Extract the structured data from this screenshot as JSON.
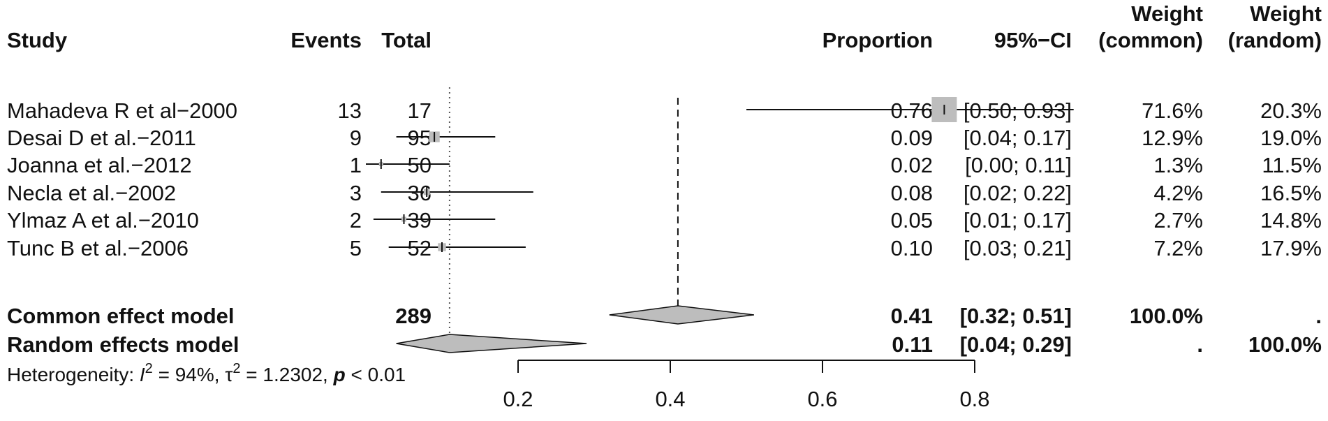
{
  "headers": {
    "study": "Study",
    "events": "Events",
    "total": "Total",
    "proportion": "Proportion",
    "ci": "95%−CI",
    "weight_common_line1": "Weight",
    "weight_common_line2": "(common)",
    "weight_random_line1": "Weight",
    "weight_random_line2": "(random)"
  },
  "heterogeneity": {
    "prefix": "Heterogeneity: ",
    "i2_symbol": "I",
    "i2_sup": "2",
    "i2_value": " = 94%, ",
    "tau_symbol": "τ",
    "tau_sup": "2",
    "tau_value": " = 1.2302, ",
    "p_symbol": "p",
    "p_value": " < 0.01"
  },
  "chart_data": {
    "type": "forest",
    "xlim": [
      0.2,
      0.8
    ],
    "xticks": [
      "0.2",
      "0.4",
      "0.6",
      "0.8"
    ],
    "studies": [
      {
        "name": "Mahadeva R et al−2000",
        "events": "13",
        "total": "17",
        "proportion": 0.76,
        "ci_lower": 0.5,
        "ci_upper": 0.93,
        "proportion_label": "0.76",
        "ci_label": "[0.50; 0.93]",
        "weight_common": "71.6%",
        "weight_random": "20.3%",
        "weight_common_value": 71.6
      },
      {
        "name": "Desai D et al.−2011",
        "events": "9",
        "total": "95",
        "proportion": 0.09,
        "ci_lower": 0.04,
        "ci_upper": 0.17,
        "proportion_label": "0.09",
        "ci_label": "[0.04; 0.17]",
        "weight_common": "12.9%",
        "weight_random": "19.0%",
        "weight_common_value": 12.9
      },
      {
        "name": "Joanna et  al.−2012",
        "events": "1",
        "total": "50",
        "proportion": 0.02,
        "ci_lower": 0.0,
        "ci_upper": 0.11,
        "proportion_label": "0.02",
        "ci_label": "[0.00; 0.11]",
        "weight_common": "1.3%",
        "weight_random": "11.5%",
        "weight_common_value": 1.3
      },
      {
        "name": "Necla et al.−2002",
        "events": "3",
        "total": "36",
        "proportion": 0.08,
        "ci_lower": 0.02,
        "ci_upper": 0.22,
        "proportion_label": "0.08",
        "ci_label": "[0.02; 0.22]",
        "weight_common": "4.2%",
        "weight_random": "16.5%",
        "weight_common_value": 4.2
      },
      {
        "name": "Ylmaz A et al.−2010",
        "events": "2",
        "total": "39",
        "proportion": 0.05,
        "ci_lower": 0.01,
        "ci_upper": 0.17,
        "proportion_label": "0.05",
        "ci_label": "[0.01; 0.17]",
        "weight_common": "2.7%",
        "weight_random": "14.8%",
        "weight_common_value": 2.7
      },
      {
        "name": "Tunc B et al.−2006",
        "events": "5",
        "total": "52",
        "proportion": 0.1,
        "ci_lower": 0.03,
        "ci_upper": 0.21,
        "proportion_label": "0.10",
        "ci_label": "[0.03; 0.21]",
        "weight_common": "7.2%",
        "weight_random": "17.9%",
        "weight_common_value": 7.2
      }
    ],
    "common": {
      "name": "Common effect model",
      "total": "289",
      "estimate": 0.41,
      "ci_lower": 0.32,
      "ci_upper": 0.51,
      "proportion_label": "0.41",
      "ci_label": "[0.32; 0.51]",
      "weight_common": "100.0%",
      "weight_random": "."
    },
    "random": {
      "name": "Random effects model",
      "estimate": 0.11,
      "ci_lower": 0.04,
      "ci_upper": 0.29,
      "proportion_label": "0.11",
      "ci_label": "[0.04; 0.29]",
      "weight_common": ".",
      "weight_random": "100.0%"
    },
    "reference_line_value": 0.41,
    "random_line_value": 0.11,
    "colors": {
      "square": "#bdbdbd",
      "diamond": "#bdbdbd",
      "line": "#000000"
    }
  }
}
